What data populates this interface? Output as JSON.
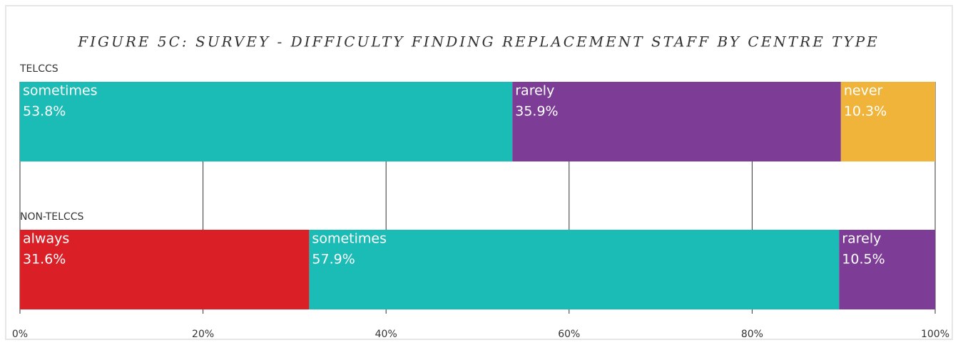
{
  "chart_data": {
    "type": "stacked-barh",
    "title": "FIGURE 5C: SURVEY - DIFFICULTY FINDING REPLACEMENT STAFF BY CENTRE TYPE",
    "categories": [
      "TELCCS",
      "NON-TELCCS"
    ],
    "series": [
      {
        "name": "always",
        "color": "#da1f27",
        "values": [
          null,
          31.6
        ],
        "value_labels": [
          null,
          "31.6%"
        ]
      },
      {
        "name": "sometimes",
        "color": "#1bbcb5",
        "values": [
          53.8,
          57.9
        ],
        "value_labels": [
          "53.8%",
          "57.9%"
        ]
      },
      {
        "name": "rarely",
        "color": "#7d3c96",
        "values": [
          35.9,
          10.5
        ],
        "value_labels": [
          "35.9%",
          "10.5%"
        ]
      },
      {
        "name": "never",
        "color": "#f0b43a",
        "values": [
          10.3,
          null
        ],
        "value_labels": [
          "10.3%",
          null
        ]
      }
    ],
    "xlim": [
      0,
      100
    ],
    "xticks": [
      {
        "value": 0,
        "label": "0%"
      },
      {
        "value": 20,
        "label": "20%"
      },
      {
        "value": 40,
        "label": "40%"
      },
      {
        "value": 60,
        "label": "60%"
      },
      {
        "value": 80,
        "label": "80%"
      },
      {
        "value": 100,
        "label": "100%"
      }
    ],
    "grid": true
  }
}
